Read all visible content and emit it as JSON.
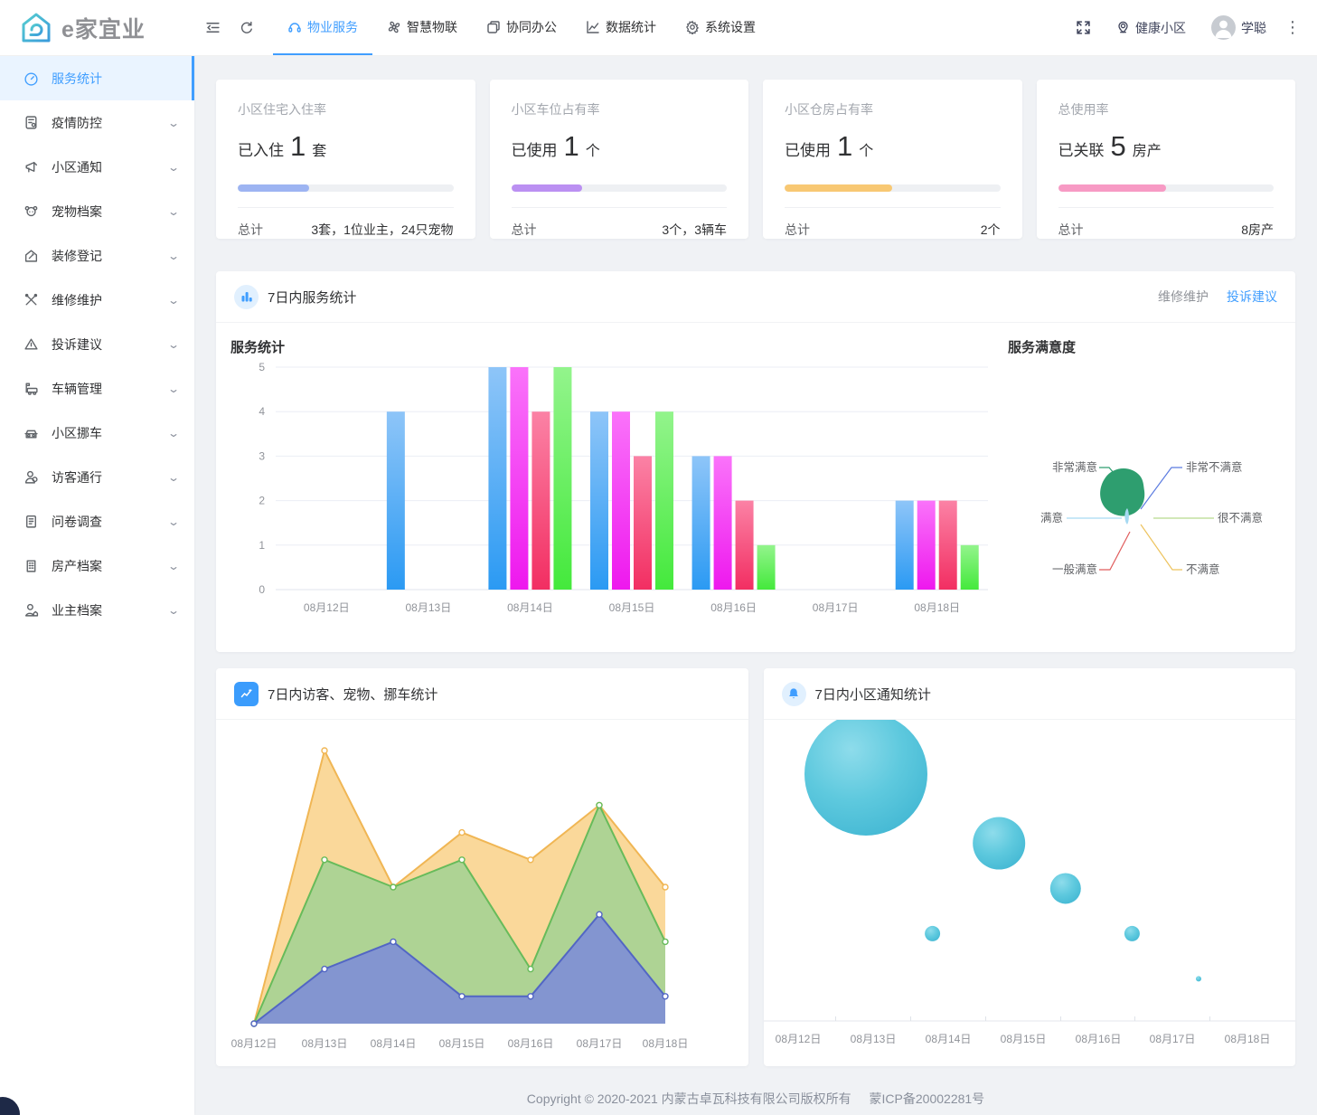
{
  "brand": {
    "name": "e家宜业"
  },
  "navbar": {
    "menu": [
      {
        "label": "物业服务",
        "active": true
      },
      {
        "label": "智慧物联",
        "active": false
      },
      {
        "label": "协同办公",
        "active": false
      },
      {
        "label": "数据统计",
        "active": false
      },
      {
        "label": "系统设置",
        "active": false
      }
    ],
    "community": "健康小区",
    "user": "学聪"
  },
  "sidebar": {
    "items": [
      {
        "label": "服务统计",
        "active": true,
        "expandable": false
      },
      {
        "label": "疫情防控",
        "active": false,
        "expandable": true
      },
      {
        "label": "小区通知",
        "active": false,
        "expandable": true
      },
      {
        "label": "宠物档案",
        "active": false,
        "expandable": true
      },
      {
        "label": "装修登记",
        "active": false,
        "expandable": true
      },
      {
        "label": "维修维护",
        "active": false,
        "expandable": true
      },
      {
        "label": "投诉建议",
        "active": false,
        "expandable": true
      },
      {
        "label": "车辆管理",
        "active": false,
        "expandable": true
      },
      {
        "label": "小区挪车",
        "active": false,
        "expandable": true
      },
      {
        "label": "访客通行",
        "active": false,
        "expandable": true
      },
      {
        "label": "问卷调查",
        "active": false,
        "expandable": true
      },
      {
        "label": "房产档案",
        "active": false,
        "expandable": true
      },
      {
        "label": "业主档案",
        "active": false,
        "expandable": true
      }
    ],
    "chevron": "ˇ"
  },
  "stat_cards": [
    {
      "title": "小区住宅入住率",
      "prefix": "已入住",
      "value": "1",
      "unit": "套",
      "total_label": "总计",
      "total_value": "3套，1位业主，24只宠物",
      "bar_color": "#9db4f2",
      "percent": 33
    },
    {
      "title": "小区车位占有率",
      "prefix": "已使用",
      "value": "1",
      "unit": "个",
      "total_label": "总计",
      "total_value": "3个，3辆车",
      "bar_color": "#bb90f2",
      "percent": 33
    },
    {
      "title": "小区仓房占有率",
      "prefix": "已使用",
      "value": "1",
      "unit": "个",
      "total_label": "总计",
      "total_value": "2个",
      "bar_color": "#f8c873",
      "percent": 50
    },
    {
      "title": "总使用率",
      "prefix": "已关联",
      "value": "5",
      "unit": "房产",
      "total_label": "总计",
      "total_value": "8房产",
      "bar_color": "#f79ac4",
      "percent": 50
    }
  ],
  "service_panel": {
    "title": "7日内服务统计",
    "tabs": [
      {
        "label": "维修维护",
        "active": false
      },
      {
        "label": "投诉建议",
        "active": true
      }
    ],
    "bar_section_title": "服务统计",
    "pie_section_title": "服务满意度"
  },
  "visitor_panel": {
    "title": "7日内访客、宠物、挪车统计"
  },
  "notice_panel": {
    "title": "7日内小区通知统计"
  },
  "footer": {
    "copyright": "Copyright © 2020-2021 内蒙古卓瓦科技有限公司版权所有",
    "icp": "蒙ICP备20002281号"
  },
  "accent_color": "#409eff",
  "chart_data": [
    {
      "id": "service-bar",
      "type": "bar",
      "title": "服务统计",
      "categories": [
        "08月12日",
        "08月13日",
        "08月14日",
        "08月15日",
        "08月16日",
        "08月17日",
        "08月18日"
      ],
      "series": [
        {
          "name": "series-blue",
          "color_top": "#8ec5f8",
          "color_bottom": "#2b9af3",
          "values": [
            null,
            4,
            5,
            4,
            3,
            null,
            2
          ]
        },
        {
          "name": "series-magenta",
          "color_top": "#fa73fa",
          "color_bottom": "#ee18ee",
          "values": [
            null,
            null,
            5,
            4,
            3,
            null,
            2
          ]
        },
        {
          "name": "series-red",
          "color_top": "#fb82a5",
          "color_bottom": "#f22e62",
          "values": [
            null,
            null,
            4,
            3,
            2,
            null,
            2
          ]
        },
        {
          "name": "series-green",
          "color_top": "#93f48c",
          "color_bottom": "#44e93c",
          "values": [
            null,
            null,
            5,
            4,
            1,
            null,
            1
          ]
        }
      ],
      "ylim": [
        0,
        5
      ],
      "yticks": [
        0,
        1,
        2,
        3,
        4,
        5
      ],
      "grid": true,
      "legend": false
    },
    {
      "id": "satisfaction-pie",
      "type": "pie",
      "title": "服务满意度",
      "labels": [
        "非常满意",
        "满意",
        "一般满意",
        "非常不满意",
        "很不满意",
        "不满意"
      ],
      "estimated_share": {
        "非常满意": 0.95,
        "满意": 0.05,
        "一般满意": 0,
        "非常不满意": 0,
        "很不满意": 0,
        "不满意": 0
      },
      "colors": {
        "非常满意": "#2e9e6f",
        "满意": "#a6d9f2",
        "一般满意": "#e05c5c",
        "非常不满意": "#5b7be0",
        "很不满意": "#b6d98e",
        "不满意": "#edc35e"
      },
      "legend": false
    },
    {
      "id": "visitor-area",
      "type": "area",
      "title": "7日内访客、宠物、挪车统计",
      "categories": [
        "08月12日",
        "08月13日",
        "08月14日",
        "08月15日",
        "08月16日",
        "08月17日",
        "08月18日"
      ],
      "series": [
        {
          "name": "series-orange",
          "line_color": "#f0b654",
          "fill_color": "#f8cd7e",
          "values": [
            0,
            10,
            5,
            7,
            6,
            8,
            5
          ]
        },
        {
          "name": "series-green",
          "line_color": "#67bb5a",
          "fill_color": "#9ed293",
          "values": [
            0,
            6,
            5,
            6,
            2,
            8,
            3
          ]
        },
        {
          "name": "series-blue",
          "line_color": "#5266c4",
          "fill_color": "#7e8ed6",
          "values": [
            0,
            2,
            3,
            1,
            1,
            4,
            1
          ]
        }
      ],
      "ylim": [
        0,
        10
      ],
      "grid": false,
      "legend": false
    },
    {
      "id": "notice-bubble",
      "type": "scatter",
      "title": "7日内小区通知统计",
      "categories": [
        "08月12日",
        "08月13日",
        "08月14日",
        "08月15日",
        "08月16日",
        "08月17日",
        "08月18日"
      ],
      "points": [
        {
          "x": "08月13日",
          "y": 8.2,
          "r": 68
        },
        {
          "x": "08月14日",
          "y": 2.9,
          "r": 8.5
        },
        {
          "x": "08月15日",
          "y": 5.9,
          "r": 29
        },
        {
          "x": "08月16日",
          "y": 4.4,
          "r": 17
        },
        {
          "x": "08月17日",
          "y": 2.9,
          "r": 8.5
        },
        {
          "x": "08月18日",
          "y": 1.4,
          "r": 3
        }
      ],
      "color": "#54c4dc",
      "legend": false
    }
  ]
}
